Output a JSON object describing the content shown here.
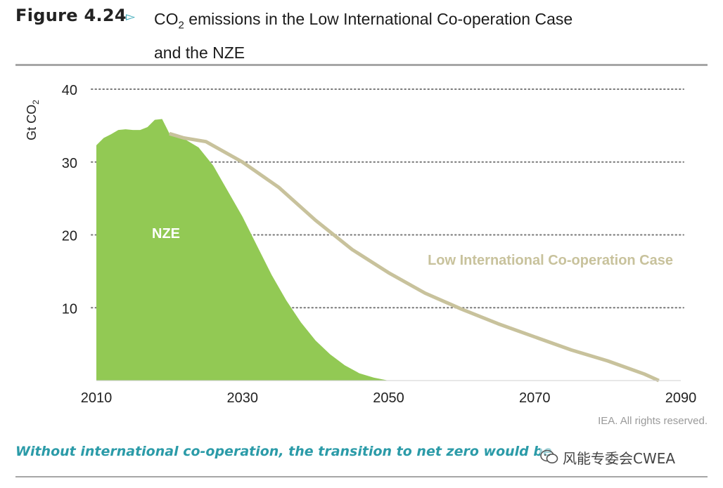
{
  "figure": {
    "label": "Figure 4.24",
    "arrow": "▻",
    "title_part1": "CO",
    "title_sub": "2",
    "title_part2": " emissions in the Low International Co-operation Case",
    "title_line2": "and the NZE"
  },
  "credit": "IEA. All rights reserved.",
  "caption": "Without international co-operation, the transition to net zero would be",
  "watermark": {
    "text": "风能专委会CWEA",
    "icon": "wechat-icon"
  },
  "colors": {
    "nze": "#92c954",
    "lic": "#c8c29c",
    "caption": "#2b9ba8",
    "grid": "#777777"
  },
  "chart_data": {
    "type": "area",
    "title": "CO2 emissions in the Low International Co-operation Case and the NZE",
    "ylabel": "Gt CO2",
    "ylabel_main": "Gt CO",
    "ylabel_sub": "2",
    "xlabel": "",
    "xlim": [
      2010,
      2090
    ],
    "ylim": [
      0,
      40
    ],
    "x_ticks": [
      2010,
      2030,
      2050,
      2070,
      2090
    ],
    "y_ticks": [
      10,
      20,
      30,
      40
    ],
    "grid": "horizontal dotted",
    "series": [
      {
        "name": "NZE",
        "label": "NZE",
        "kind": "area",
        "points": [
          [
            2010,
            32.3
          ],
          [
            2011,
            33.3
          ],
          [
            2012,
            33.8
          ],
          [
            2013,
            34.4
          ],
          [
            2014,
            34.5
          ],
          [
            2015,
            34.4
          ],
          [
            2016,
            34.4
          ],
          [
            2017,
            34.8
          ],
          [
            2018,
            35.8
          ],
          [
            2019,
            35.9
          ],
          [
            2020,
            33.9
          ],
          [
            2022,
            33.2
          ],
          [
            2024,
            32.0
          ],
          [
            2026,
            29.5
          ],
          [
            2028,
            26.0
          ],
          [
            2030,
            22.5
          ],
          [
            2032,
            18.5
          ],
          [
            2034,
            14.5
          ],
          [
            2036,
            11.0
          ],
          [
            2038,
            8.0
          ],
          [
            2040,
            5.5
          ],
          [
            2042,
            3.6
          ],
          [
            2044,
            2.1
          ],
          [
            2046,
            1.0
          ],
          [
            2048,
            0.4
          ],
          [
            2050,
            0.0
          ]
        ]
      },
      {
        "name": "Low International Co-operation Case",
        "label": "Low International Co-operation Case",
        "kind": "line",
        "points": [
          [
            2020,
            33.9
          ],
          [
            2022,
            33.3
          ],
          [
            2025,
            32.8
          ],
          [
            2030,
            30.0
          ],
          [
            2035,
            26.5
          ],
          [
            2040,
            22.0
          ],
          [
            2045,
            18.0
          ],
          [
            2050,
            14.8
          ],
          [
            2055,
            12.0
          ],
          [
            2060,
            9.8
          ],
          [
            2065,
            7.8
          ],
          [
            2070,
            6.0
          ],
          [
            2075,
            4.2
          ],
          [
            2080,
            2.7
          ],
          [
            2085,
            0.9
          ],
          [
            2087,
            0.0
          ]
        ]
      }
    ]
  }
}
